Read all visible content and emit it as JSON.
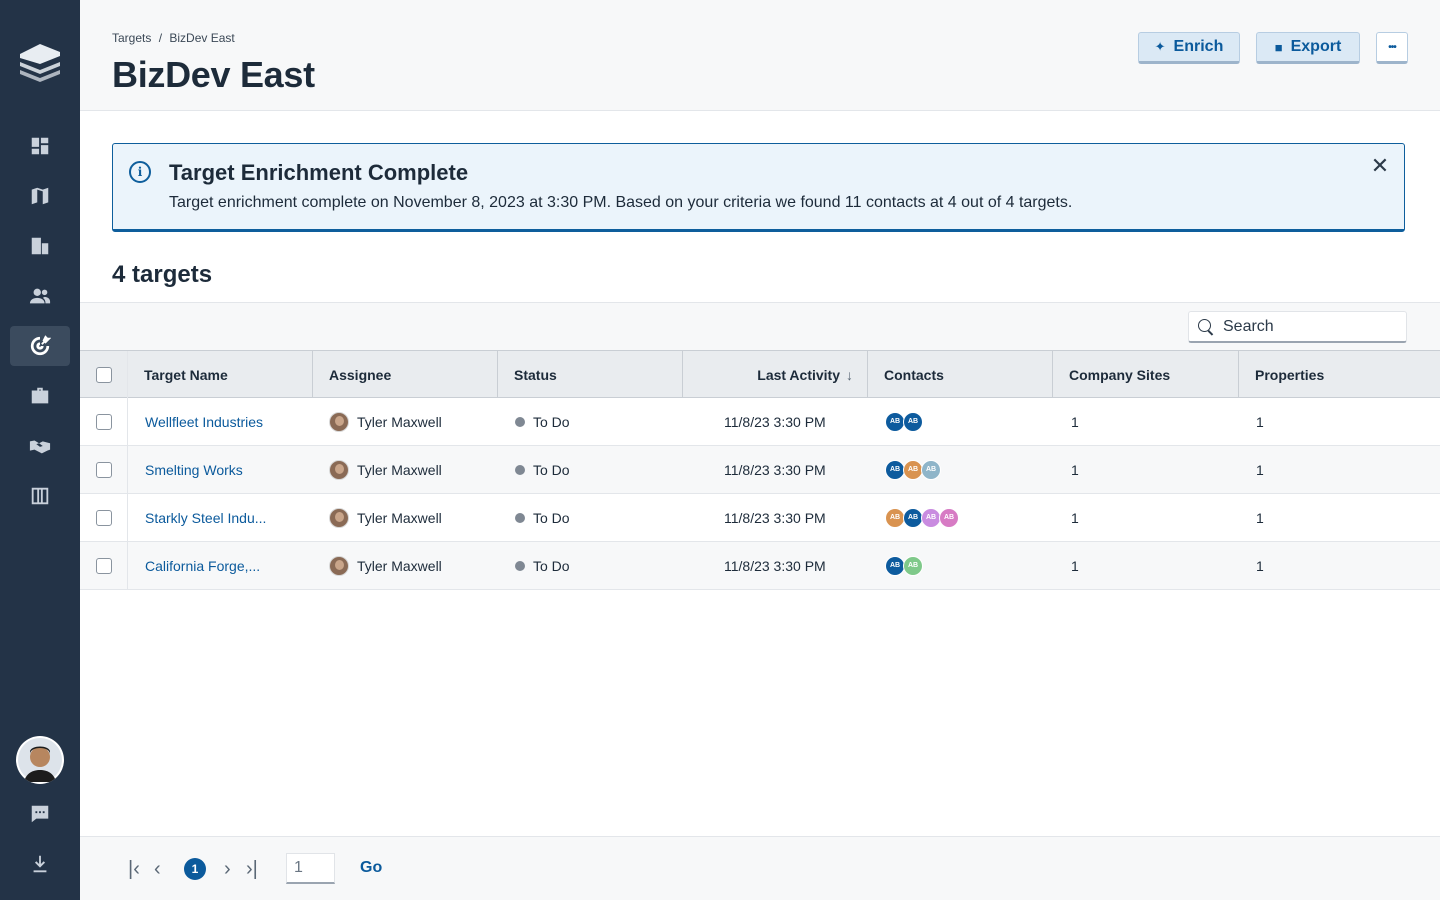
{
  "breadcrumb": {
    "root": "Targets",
    "separator": "/",
    "current": "BizDev East"
  },
  "page_title": "BizDev East",
  "actions": {
    "enrich_label": "Enrich",
    "export_label": "Export",
    "more_label": "•••"
  },
  "banner": {
    "title": "Target Enrichment Complete",
    "message": "Target enrichment complete on November 8, 2023 at 3:30 PM. Based on your criteria we found 11 contacts at 4 out of 4 targets.",
    "close_label": "✕"
  },
  "count_title": "4 targets",
  "search": {
    "placeholder": "Search",
    "value": ""
  },
  "table": {
    "columns": [
      "Target Name",
      "Assignee",
      "Status",
      "Last Activity",
      "Contacts",
      "Company Sites",
      "Properties"
    ],
    "sort_indicator": "↓",
    "rows": [
      {
        "name": "Wellfleet Industries",
        "assignee": "Tyler Maxwell",
        "status": "To Do",
        "last_activity": "11/8/23 3:30 PM",
        "contacts": [
          "AB",
          "AB"
        ],
        "sites": "1",
        "properties": "1"
      },
      {
        "name": "Smelting Works",
        "assignee": "Tyler Maxwell",
        "status": "To Do",
        "last_activity": "11/8/23 3:30 PM",
        "contacts": [
          "AB",
          "AB",
          "AB"
        ],
        "sites": "1",
        "properties": "1"
      },
      {
        "name": "Starkly Steel Indu...",
        "assignee": "Tyler Maxwell",
        "status": "To Do",
        "last_activity": "11/8/23 3:30 PM",
        "contacts": [
          "AB",
          "AB",
          "AB",
          "AB"
        ],
        "sites": "1",
        "properties": "1"
      },
      {
        "name": "California Forge,...",
        "assignee": "Tyler Maxwell",
        "status": "To Do",
        "last_activity": "11/8/23 3:30 PM",
        "contacts": [
          "AB",
          "AB"
        ],
        "sites": "1",
        "properties": "1"
      }
    ]
  },
  "contact_colors": {
    "row1": [
      "#0d5b9e",
      "#0d5b9e"
    ],
    "row2": [
      "#0d5b9e",
      "#d99350",
      "#8fb5c9"
    ],
    "row3": [
      "#d99350",
      "#0d5b9e",
      "#c98be0",
      "#d77bc4"
    ],
    "row4": [
      "#0d5b9e",
      "#7fc98a"
    ]
  },
  "pagination": {
    "first": "|‹",
    "prev": "‹",
    "current": "1",
    "next": "›",
    "last": "›|",
    "input_value": "1",
    "go_label": "Go"
  },
  "sidebar": {
    "items": [
      "dashboard-icon",
      "map-icon",
      "buildings-icon",
      "people-icon",
      "targets-icon",
      "briefcase-icon",
      "handshake-icon",
      "table-icon"
    ],
    "bottom": [
      "chat-icon",
      "download-icon"
    ],
    "active": "targets-icon"
  },
  "colors": {
    "sidebar": "#233347",
    "accent": "#0b5a9c",
    "banner_bg": "#ebf4fb"
  }
}
